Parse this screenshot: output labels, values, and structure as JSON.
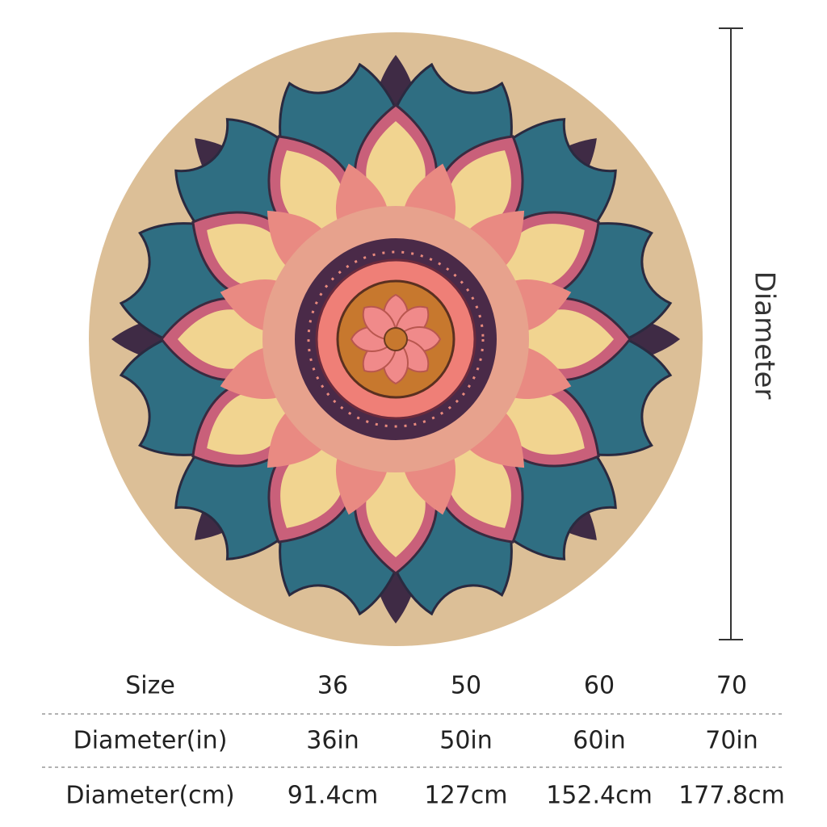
{
  "product": {
    "dimension_label": "Diameter"
  },
  "table": {
    "rows": [
      [
        "Size",
        "36",
        "50",
        "60",
        "70"
      ],
      [
        "Diameter(in)",
        "36in",
        "50in",
        "60in",
        "70in"
      ],
      [
        "Diameter(cm)",
        "91.4cm",
        "127cm",
        "152.4cm",
        "177.8cm"
      ]
    ]
  }
}
